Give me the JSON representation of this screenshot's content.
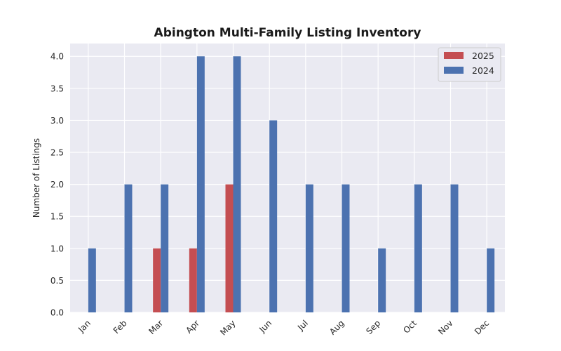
{
  "chart_data": {
    "type": "bar",
    "title": "Abington Multi-Family Listing Inventory",
    "xlabel": "",
    "ylabel": "Number of Listings",
    "categories": [
      "Jan",
      "Feb",
      "Mar",
      "Apr",
      "May",
      "Jun",
      "Jul",
      "Aug",
      "Sep",
      "Oct",
      "Nov",
      "Dec"
    ],
    "series": [
      {
        "name": "2025",
        "color": "#c44e52",
        "values": [
          0,
          0,
          1,
          1,
          2,
          0,
          0,
          0,
          0,
          0,
          0,
          0
        ]
      },
      {
        "name": "2024",
        "color": "#4c72b0",
        "values": [
          1,
          2,
          2,
          4,
          4,
          3,
          2,
          2,
          1,
          2,
          2,
          1
        ]
      }
    ],
    "ylim": [
      0,
      4.2
    ],
    "yticks": [
      "0.0",
      "0.5",
      "1.0",
      "1.5",
      "2.0",
      "2.5",
      "3.0",
      "3.5",
      "4.0"
    ],
    "grid": true,
    "legend_position": "top-right",
    "background_color": "#eaeaf2"
  }
}
